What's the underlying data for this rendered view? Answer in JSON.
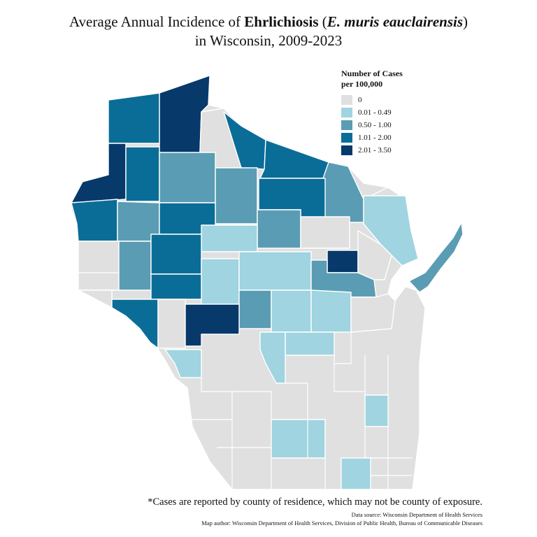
{
  "title": {
    "line1_prefix": "Average Annual Incidence of ",
    "line1_bold": "Ehrlichiosis",
    "line1_paren_open": " (",
    "line1_italic": "E. muris eauclairensis",
    "line1_paren_close": ")",
    "line2": "in Wisconsin, 2009-2023"
  },
  "legend": {
    "title_line1": "Number of Cases",
    "title_line2": "per 100,000",
    "items": [
      {
        "label": "0",
        "color": "#e0e0e0"
      },
      {
        "label": "0.01 - 0.49",
        "color": "#9fd4e0"
      },
      {
        "label": "0.50 - 1.00",
        "color": "#5a9cb4"
      },
      {
        "label": "1.01 - 2.00",
        "color": "#0a6d97"
      },
      {
        "label": "2.01 - 3.50",
        "color": "#07396a"
      }
    ]
  },
  "footnote": "*Cases are reported by county of residence, which may not be county of exposure.",
  "data_source": "Data source: Wisconsin Department of Health Services",
  "map_author": "Map author: Wisconsin Department of Health Services, Division of Public Health, Bureau of Communicable Diseases"
}
